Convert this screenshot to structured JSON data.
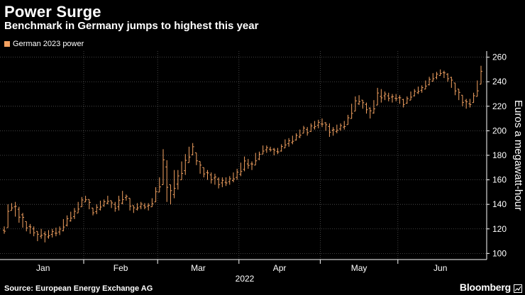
{
  "title": "Power Surge",
  "subtitle": "Benchmark in Germany jumps to highest this year",
  "source": "Source: European Energy Exchange AG",
  "brand": "Bloomberg",
  "colors": {
    "series": "#f4a261",
    "background": "#000000",
    "grid": "#555555",
    "text": "#ffffff"
  },
  "chart_data": {
    "type": "ohlc",
    "legend": [
      "German 2023 power"
    ],
    "ylabel": "Euros a megawatt-hour",
    "xlabel": "2022",
    "ylim": [
      95,
      265
    ],
    "yticks": [
      100,
      120,
      140,
      160,
      180,
      200,
      220,
      240,
      260
    ],
    "xtick_labels": [
      "Jan",
      "Feb",
      "Mar",
      "Apr",
      "May",
      "Jun"
    ],
    "grid": true,
    "y_axis_position": "right",
    "legend_position": "top-left",
    "series": [
      {
        "name": "German 2023 power",
        "values": [
          [
            116,
            122
          ],
          [
            121,
            140
          ],
          [
            135,
            141
          ],
          [
            130,
            142
          ],
          [
            125,
            138
          ],
          [
            121,
            133
          ],
          [
            118,
            126
          ],
          [
            116,
            124
          ],
          [
            114,
            122
          ],
          [
            110,
            118
          ],
          [
            112,
            120
          ],
          [
            109,
            118
          ],
          [
            112,
            119
          ],
          [
            113,
            120
          ],
          [
            114,
            121
          ],
          [
            115,
            122
          ],
          [
            118,
            128
          ],
          [
            122,
            131
          ],
          [
            126,
            134
          ],
          [
            128,
            137
          ],
          [
            133,
            142
          ],
          [
            138,
            146
          ],
          [
            142,
            147
          ],
          [
            136,
            144
          ],
          [
            131,
            137
          ],
          [
            132,
            140
          ],
          [
            135,
            143
          ],
          [
            138,
            144
          ],
          [
            140,
            147
          ],
          [
            137,
            143
          ],
          [
            134,
            142
          ],
          [
            135,
            147
          ],
          [
            140,
            151
          ],
          [
            143,
            148
          ],
          [
            135,
            145
          ],
          [
            133,
            139
          ],
          [
            135,
            141
          ],
          [
            136,
            142
          ],
          [
            136,
            141
          ],
          [
            135,
            141
          ],
          [
            138,
            145
          ],
          [
            142,
            154
          ],
          [
            150,
            162
          ],
          [
            156,
            185
          ],
          [
            142,
            176
          ],
          [
            140,
            156
          ],
          [
            145,
            168
          ],
          [
            152,
            168
          ],
          [
            160,
            175
          ],
          [
            164,
            181
          ],
          [
            174,
            187
          ],
          [
            180,
            190
          ],
          [
            172,
            182
          ],
          [
            165,
            175
          ],
          [
            162,
            170
          ],
          [
            160,
            168
          ],
          [
            157,
            166
          ],
          [
            156,
            165
          ],
          [
            153,
            162
          ],
          [
            154,
            162
          ],
          [
            155,
            162
          ],
          [
            156,
            163
          ],
          [
            158,
            166
          ],
          [
            160,
            169
          ],
          [
            163,
            174
          ],
          [
            167,
            179
          ],
          [
            169,
            177
          ],
          [
            168,
            175
          ],
          [
            172,
            182
          ],
          [
            176,
            183
          ],
          [
            181,
            188
          ],
          [
            182,
            188
          ],
          [
            183,
            187
          ],
          [
            180,
            186
          ],
          [
            181,
            186
          ],
          [
            183,
            189
          ],
          [
            186,
            193
          ],
          [
            187,
            194
          ],
          [
            189,
            196
          ],
          [
            192,
            198
          ],
          [
            194,
            201
          ],
          [
            198,
            204
          ],
          [
            196,
            203
          ],
          [
            199,
            206
          ],
          [
            201,
            208
          ],
          [
            202,
            209
          ],
          [
            203,
            210
          ],
          [
            200,
            207
          ],
          [
            195,
            206
          ],
          [
            196,
            203
          ],
          [
            198,
            205
          ],
          [
            200,
            206
          ],
          [
            201,
            208
          ],
          [
            205,
            213
          ],
          [
            210,
            222
          ],
          [
            216,
            228
          ],
          [
            221,
            229
          ],
          [
            218,
            225
          ],
          [
            214,
            223
          ],
          [
            210,
            219
          ],
          [
            214,
            225
          ],
          [
            221,
            235
          ],
          [
            223,
            234
          ],
          [
            225,
            232
          ],
          [
            224,
            231
          ],
          [
            223,
            230
          ],
          [
            224,
            230
          ],
          [
            222,
            229
          ],
          [
            219,
            226
          ],
          [
            222,
            228
          ],
          [
            225,
            232
          ],
          [
            228,
            234
          ],
          [
            230,
            236
          ],
          [
            231,
            237
          ],
          [
            234,
            241
          ],
          [
            237,
            244
          ],
          [
            240,
            247
          ],
          [
            242,
            248
          ],
          [
            245,
            250
          ],
          [
            243,
            249
          ],
          [
            240,
            247
          ],
          [
            235,
            244
          ],
          [
            229,
            239
          ],
          [
            225,
            234
          ],
          [
            220,
            229
          ],
          [
            218,
            226
          ],
          [
            219,
            226
          ],
          [
            223,
            231
          ],
          [
            228,
            241
          ],
          [
            238,
            253
          ]
        ]
      }
    ]
  }
}
